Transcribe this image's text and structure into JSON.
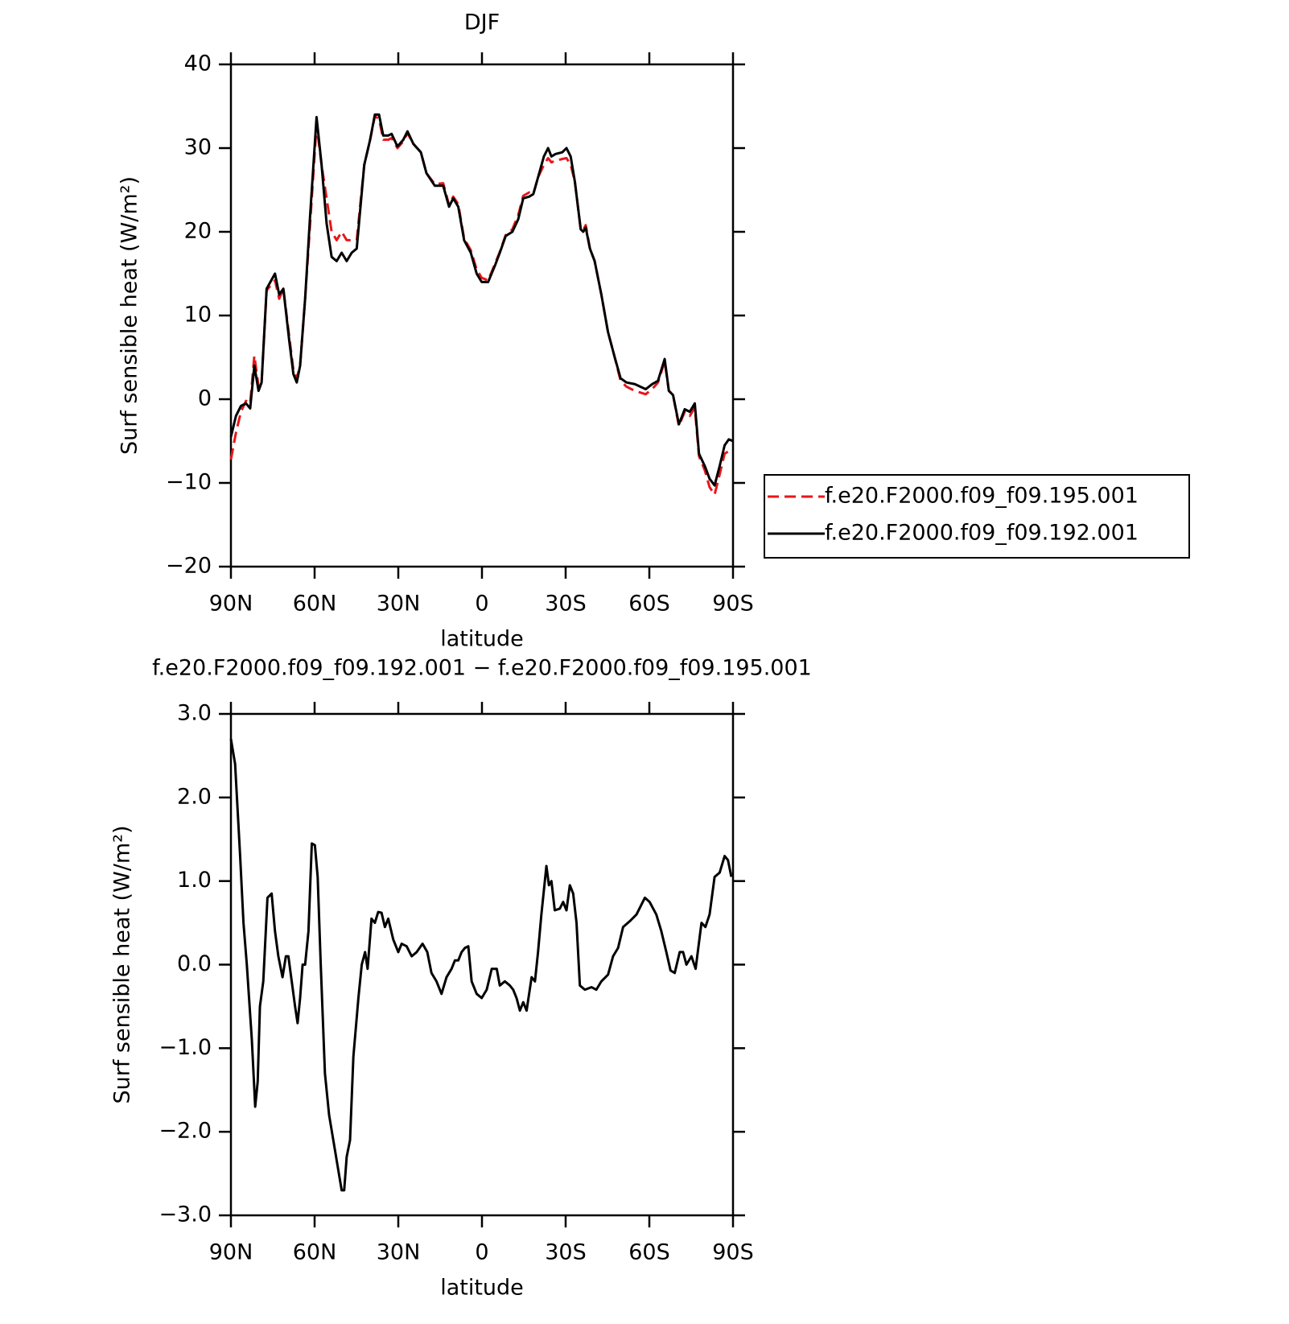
{
  "chart_data": [
    {
      "type": "line",
      "title": "DJF",
      "xlabel": "latitude",
      "ylabel": "Surf sensible heat (W/m²)",
      "x": [
        90,
        88.2,
        86.4,
        84.6,
        83.1,
        81.6,
        80.1,
        79,
        77.2,
        74.2,
        72.7,
        71.2,
        69.1,
        67.6,
        66.4,
        65.2,
        63.4,
        61.6,
        59.3,
        57.5,
        55.7,
        53.9,
        52.1,
        50.3,
        48.5,
        46.7,
        44.9,
        42.2,
        40.1,
        38.4,
        36.9,
        35.4,
        33.6,
        32.4,
        30.3,
        28.2,
        26.7,
        24.6,
        21.9,
        19.9,
        16.9,
        13.9,
        11.8,
        10.3,
        8.5,
        6.4,
        4,
        1.9,
        0.1,
        -2.2,
        -4.7,
        -6.4,
        -8.5,
        -10.9,
        -13,
        -14.8,
        -16.9,
        -18.4,
        -20.1,
        -22.2,
        -23.7,
        -24.9,
        -26.4,
        -28.8,
        -30.3,
        -31.8,
        -33.3,
        -35.4,
        -36.3,
        -37.2,
        -38.7,
        -40.4,
        -42.8,
        -45.2,
        -47.6,
        -49.7,
        -51.8,
        -54.8,
        -58.7,
        -61,
        -63.1,
        -65.5,
        -67,
        -68.5,
        -70.6,
        -72.7,
        -74.5,
        -76.3,
        -77.8,
        -79.9,
        -81.6,
        -83.4,
        -85.2,
        -87,
        -88.5,
        -90
      ],
      "series": [
        {
          "name": "f.e20.F2000.f09_f09.195.001",
          "color": "#e8161a",
          "dash": true,
          "values": [
            -7.2,
            -4,
            -1.5,
            -0.2,
            -0.5,
            5.2,
            1.5,
            2,
            13,
            14.2,
            12,
            13.2,
            7.5,
            3.5,
            2.5,
            4,
            12,
            21,
            32.8,
            28,
            24,
            20,
            19,
            20,
            19,
            19,
            19,
            28,
            31,
            33.8,
            33.5,
            31,
            31,
            31.2,
            30,
            30.8,
            31.8,
            30.5,
            29.5,
            27,
            25.7,
            25.8,
            23.2,
            24.2,
            23.3,
            19.2,
            17.8,
            15.5,
            14.5,
            14.2,
            16.2,
            17.6,
            19.6,
            20.3,
            22,
            24.3,
            24.7,
            24.5,
            26.5,
            28,
            28.8,
            28.3,
            28.5,
            28.7,
            28.8,
            28,
            26,
            20.3,
            20.2,
            20.8,
            18,
            16.5,
            12.5,
            8,
            5,
            2.2,
            1.5,
            1,
            0.6,
            1.2,
            2,
            4.5,
            1,
            0.5,
            -3.2,
            -1.5,
            -2,
            -1,
            -6.8,
            -8.5,
            -10.5,
            -11.4,
            -9,
            -6.5,
            -6.2,
            -6
          ]
        },
        {
          "name": "f.e20.F2000.f09_f09.192.001",
          "color": "#000000",
          "dash": false,
          "values": [
            -4.5,
            -2,
            -0.8,
            -0.5,
            -1.1,
            4,
            1,
            2,
            13.2,
            15,
            12.5,
            13.2,
            7,
            3,
            2,
            4,
            12,
            22,
            33.7,
            28,
            21,
            17,
            16.5,
            17.5,
            16.5,
            17.5,
            18,
            28,
            31,
            34,
            34,
            31.5,
            31.5,
            31.7,
            30.2,
            31,
            32,
            30.5,
            29.5,
            27,
            25.5,
            25.5,
            23,
            24,
            23,
            19,
            17.5,
            15,
            14,
            14,
            16,
            17.5,
            19.5,
            20,
            21.5,
            24,
            24.2,
            24.5,
            26.5,
            29,
            30,
            29,
            29.3,
            29.5,
            30,
            29,
            26,
            20.3,
            20,
            20.5,
            18,
            16.5,
            12.5,
            8,
            5,
            2.5,
            2,
            1.8,
            1.2,
            1.8,
            2.2,
            4.8,
            1,
            0.5,
            -3,
            -1.2,
            -1.5,
            -0.5,
            -6.5,
            -8,
            -9.5,
            -10.3,
            -8,
            -5.5,
            -4.8,
            -5
          ]
        }
      ],
      "xlim": [
        90,
        -90
      ],
      "xticks": [
        {
          "value": 90,
          "label": "90N"
        },
        {
          "value": 60,
          "label": "60N"
        },
        {
          "value": 30,
          "label": "30N"
        },
        0,
        {
          "value": -30,
          "label": "30S"
        },
        {
          "value": -60,
          "label": "60S"
        },
        {
          "value": -90,
          "label": "90S"
        }
      ],
      "ylim": [
        -20,
        40
      ],
      "yticks": [
        {
          "value": -20,
          "label": "−20"
        },
        {
          "value": -10,
          "label": "−10"
        },
        0,
        10,
        20,
        30,
        40
      ],
      "legend": "right"
    },
    {
      "type": "line",
      "title": "f.e20.F2000.f09_f09.192.001 − f.e20.F2000.f09_f09.195.001",
      "xlabel": "latitude",
      "ylabel": "Surf sensible heat (W/m²)",
      "x": [
        90,
        88.5,
        86.7,
        85.5,
        84.3,
        82.5,
        81.3,
        80.4,
        79.6,
        78.4,
        76.9,
        75.4,
        74.2,
        73,
        71.5,
        70.3,
        69.4,
        68.2,
        67,
        66.1,
        65.2,
        64.3,
        63.4,
        62.2,
        61,
        59.9,
        58.9,
        57.8,
        56.3,
        54.8,
        53.3,
        51.8,
        50.3,
        49.4,
        48.5,
        47.3,
        46.1,
        44.3,
        43.1,
        41.9,
        41,
        39.6,
        38.4,
        37.2,
        36,
        34.8,
        33.6,
        31.8,
        30,
        28.8,
        27,
        25.2,
        23.4,
        21.3,
        19.6,
        18.1,
        16.3,
        14.5,
        12.7,
        10.9,
        9.7,
        8.5,
        7.3,
        6.1,
        4.9,
        3.7,
        1.9,
        0.1,
        -1.7,
        -3.5,
        -5.3,
        -6.4,
        -8.2,
        -10,
        -11.2,
        -12.4,
        -13.6,
        -14.8,
        -16,
        -17.8,
        -19,
        -20.1,
        -21.3,
        -23.1,
        -24,
        -24.9,
        -26.1,
        -27.9,
        -29.1,
        -30.3,
        -31.5,
        -32.7,
        -33.9,
        -35.1,
        -36.9,
        -39.3,
        -41,
        -42.8,
        -45.2,
        -47,
        -48.8,
        -50.6,
        -53,
        -55.4,
        -58.4,
        -60.1,
        -62.5,
        -64.3,
        -66.1,
        -67.6,
        -69.1,
        -70.9,
        -72.1,
        -73.3,
        -75.1,
        -76.6,
        -78.7,
        -80.1,
        -81.6,
        -83.4,
        -85.2,
        -87,
        -88.2,
        -89.4
      ],
      "series": [
        {
          "color": "#000000",
          "dash": false,
          "values": [
            2.7,
            2.4,
            1.3,
            0.5,
            0,
            -0.9,
            -1.7,
            -1.4,
            -0.5,
            -0.2,
            0.8,
            0.85,
            0.4,
            0.1,
            -0.15,
            0.1,
            0.1,
            -0.2,
            -0.5,
            -0.7,
            -0.4,
            0,
            0,
            0.4,
            1.45,
            1.43,
            1.05,
            0,
            -1.3,
            -1.8,
            -2.1,
            -2.4,
            -2.7,
            -2.7,
            -2.3,
            -2.1,
            -1.1,
            -0.4,
            0,
            0.15,
            -0.05,
            0.55,
            0.5,
            0.63,
            0.62,
            0.45,
            0.55,
            0.3,
            0.15,
            0.25,
            0.22,
            0.1,
            0.15,
            0.25,
            0.15,
            -0.1,
            -0.2,
            -0.35,
            -0.15,
            -0.05,
            0.05,
            0.05,
            0.15,
            0.2,
            0.22,
            -0.2,
            -0.35,
            -0.4,
            -0.3,
            -0.05,
            -0.05,
            -0.25,
            -0.2,
            -0.25,
            -0.3,
            -0.4,
            -0.55,
            -0.45,
            -0.55,
            -0.15,
            -0.2,
            0.15,
            0.6,
            1.18,
            0.95,
            1,
            0.65,
            0.67,
            0.75,
            0.65,
            0.95,
            0.85,
            0.5,
            -0.25,
            -0.3,
            -0.27,
            -0.3,
            -0.2,
            -0.12,
            0.1,
            0.2,
            0.45,
            0.52,
            0.6,
            0.8,
            0.75,
            0.6,
            0.4,
            0.15,
            -0.07,
            -0.1,
            0.15,
            0.15,
            0,
            0.1,
            -0.05,
            0.5,
            0.45,
            0.6,
            1.05,
            1.1,
            1.3,
            1.25,
            1.05
          ]
        }
      ],
      "xlim": [
        90,
        -90
      ],
      "xticks": [
        {
          "value": 90,
          "label": "90N"
        },
        {
          "value": 60,
          "label": "60N"
        },
        {
          "value": 30,
          "label": "30N"
        },
        0,
        {
          "value": -30,
          "label": "30S"
        },
        {
          "value": -60,
          "label": "60S"
        },
        {
          "value": -90,
          "label": "90S"
        }
      ],
      "ylim": [
        -3,
        3
      ],
      "yticks": [
        {
          "value": -3,
          "label": "−3.0"
        },
        {
          "value": -2,
          "label": "−2.0"
        },
        {
          "value": -1,
          "label": "−1.0"
        },
        {
          "value": 0,
          "label": "0.0"
        },
        {
          "value": 1,
          "label": "1.0"
        },
        {
          "value": 2,
          "label": "2.0"
        },
        {
          "value": 3,
          "label": "3.0"
        }
      ]
    }
  ]
}
